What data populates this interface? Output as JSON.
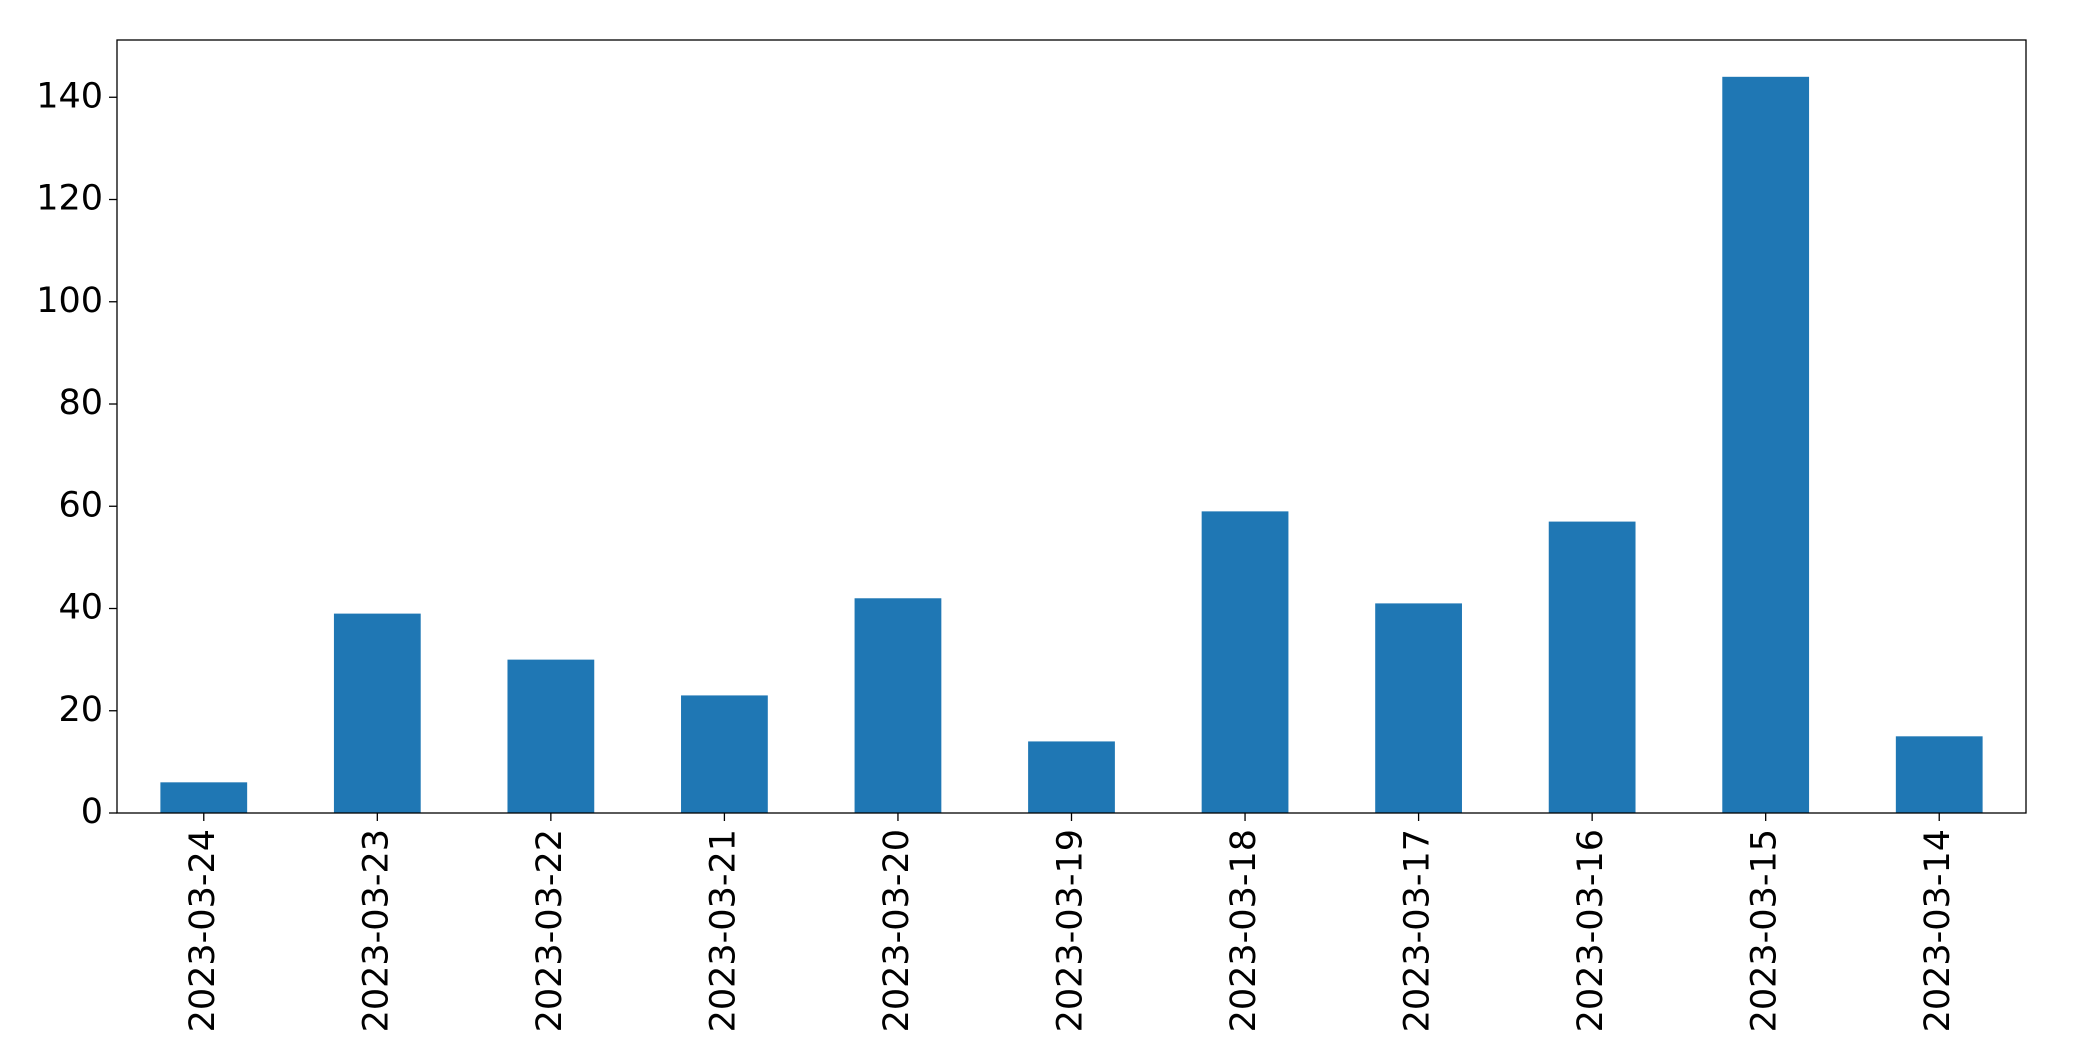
{
  "chart_data": {
    "type": "bar",
    "categories": [
      "2023-03-24",
      "2023-03-23",
      "2023-03-22",
      "2023-03-21",
      "2023-03-20",
      "2023-03-19",
      "2023-03-18",
      "2023-03-17",
      "2023-03-16",
      "2023-03-15",
      "2023-03-14"
    ],
    "values": [
      6,
      39,
      30,
      23,
      42,
      14,
      59,
      41,
      57,
      144,
      15
    ],
    "color": "#1f77b4",
    "ylim": [
      0,
      151.2
    ],
    "yticks": [
      0,
      20,
      40,
      60,
      80,
      100,
      120,
      140
    ],
    "grid": false
  }
}
